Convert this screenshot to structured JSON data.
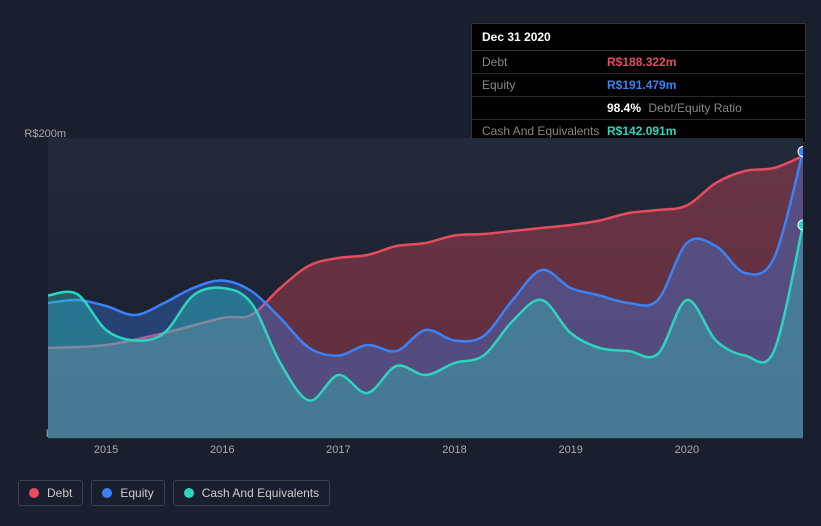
{
  "tooltip": {
    "date": "Dec 31 2020",
    "rows": [
      {
        "label": "Debt",
        "value": "R$188.322m",
        "color": "#e74c5e"
      },
      {
        "label": "Equity",
        "value": "R$191.479m",
        "color": "#3b82f6"
      },
      {
        "label": "",
        "value": "98.4%",
        "extra": "Debt/Equity Ratio",
        "color": "#ffffff"
      },
      {
        "label": "Cash And Equivalents",
        "value": "R$142.091m",
        "color": "#2dd4bf"
      }
    ]
  },
  "chart": {
    "type": "area",
    "background_color": "#1a1f2e",
    "plot_bg_top": "#232a3b",
    "plot_bg_bottom": "#171c29",
    "grid_color": "#2a3142",
    "ylim": [
      0,
      200
    ],
    "ylabels": [
      {
        "v": 200,
        "text": "R$200m"
      },
      {
        "v": 0,
        "text": "R$0"
      }
    ],
    "xlabels": [
      "2015",
      "2016",
      "2017",
      "2018",
      "2019",
      "2020"
    ],
    "xrange": [
      2014.5,
      2021.0
    ],
    "series": [
      {
        "name": "Debt",
        "color": "#e74c5e",
        "fill": "#e74c5e",
        "data": [
          [
            2014.5,
            60
          ],
          [
            2015.0,
            62
          ],
          [
            2015.5,
            70
          ],
          [
            2016.0,
            80
          ],
          [
            2016.25,
            82
          ],
          [
            2016.5,
            100
          ],
          [
            2016.75,
            115
          ],
          [
            2017.0,
            120
          ],
          [
            2017.25,
            122
          ],
          [
            2017.5,
            128
          ],
          [
            2017.75,
            130
          ],
          [
            2018.0,
            135
          ],
          [
            2018.25,
            136
          ],
          [
            2018.5,
            138
          ],
          [
            2018.75,
            140
          ],
          [
            2019.0,
            142
          ],
          [
            2019.25,
            145
          ],
          [
            2019.5,
            150
          ],
          [
            2019.75,
            152
          ],
          [
            2020.0,
            155
          ],
          [
            2020.25,
            170
          ],
          [
            2020.5,
            178
          ],
          [
            2020.75,
            180
          ],
          [
            2021.0,
            188
          ]
        ]
      },
      {
        "name": "Equity",
        "color": "#3b82f6",
        "fill": "#3b82f6",
        "data": [
          [
            2014.5,
            90
          ],
          [
            2014.75,
            92
          ],
          [
            2015.0,
            88
          ],
          [
            2015.25,
            82
          ],
          [
            2015.5,
            90
          ],
          [
            2015.75,
            100
          ],
          [
            2016.0,
            105
          ],
          [
            2016.25,
            98
          ],
          [
            2016.5,
            80
          ],
          [
            2016.75,
            60
          ],
          [
            2017.0,
            55
          ],
          [
            2017.25,
            62
          ],
          [
            2017.5,
            58
          ],
          [
            2017.75,
            72
          ],
          [
            2018.0,
            65
          ],
          [
            2018.25,
            68
          ],
          [
            2018.5,
            92
          ],
          [
            2018.75,
            112
          ],
          [
            2019.0,
            100
          ],
          [
            2019.25,
            95
          ],
          [
            2019.5,
            90
          ],
          [
            2019.75,
            92
          ],
          [
            2020.0,
            130
          ],
          [
            2020.25,
            128
          ],
          [
            2020.5,
            110
          ],
          [
            2020.75,
            120
          ],
          [
            2021.0,
            191
          ]
        ]
      },
      {
        "name": "Cash And Equivalents",
        "color": "#2dd4bf",
        "fill": "#2dd4bf",
        "data": [
          [
            2014.5,
            95
          ],
          [
            2014.75,
            96
          ],
          [
            2015.0,
            72
          ],
          [
            2015.25,
            65
          ],
          [
            2015.5,
            70
          ],
          [
            2015.75,
            95
          ],
          [
            2016.0,
            100
          ],
          [
            2016.25,
            90
          ],
          [
            2016.5,
            50
          ],
          [
            2016.75,
            25
          ],
          [
            2017.0,
            42
          ],
          [
            2017.25,
            30
          ],
          [
            2017.5,
            48
          ],
          [
            2017.75,
            42
          ],
          [
            2018.0,
            50
          ],
          [
            2018.25,
            55
          ],
          [
            2018.5,
            78
          ],
          [
            2018.75,
            92
          ],
          [
            2019.0,
            70
          ],
          [
            2019.25,
            60
          ],
          [
            2019.5,
            58
          ],
          [
            2019.75,
            56
          ],
          [
            2020.0,
            92
          ],
          [
            2020.25,
            65
          ],
          [
            2020.5,
            55
          ],
          [
            2020.75,
            58
          ],
          [
            2021.0,
            142
          ]
        ]
      }
    ],
    "markers": [
      {
        "series": 1,
        "x": 2021.0,
        "y": 191
      },
      {
        "series": 2,
        "x": 2021.0,
        "y": 142
      }
    ]
  },
  "legend": {
    "items": [
      {
        "label": "Debt",
        "color": "#e74c5e"
      },
      {
        "label": "Equity",
        "color": "#3b82f6"
      },
      {
        "label": "Cash And Equivalents",
        "color": "#2dd4bf"
      }
    ]
  }
}
